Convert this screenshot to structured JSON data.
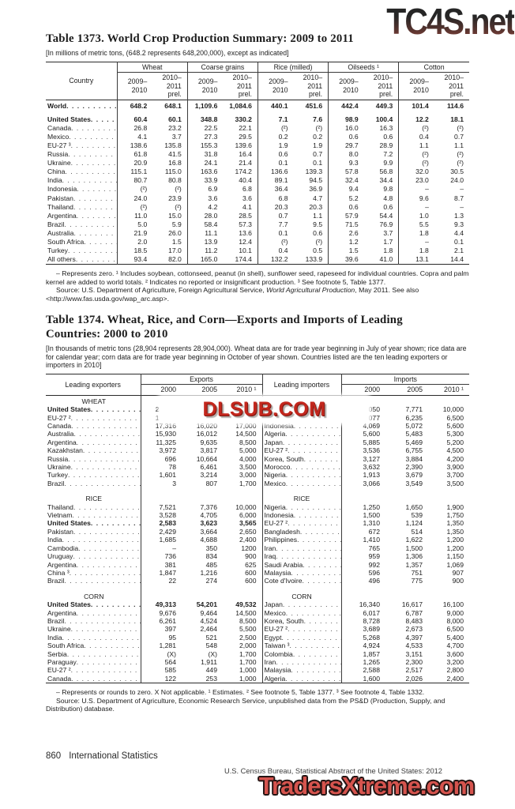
{
  "watermark_top": {
    "text": "TC4S.net",
    "color_top": "#262626",
    "color_bottom": "#8a443c"
  },
  "watermark_mid": {
    "text": "DLSUB.COM",
    "color": "#c3271d"
  },
  "watermark_bottom": {
    "text": "TradersXtreme.com",
    "color": "#d6544e"
  },
  "table1373": {
    "title": "Table 1373. World Crop Production Summary: 2009 to 2011",
    "note": "[In millions of metric tons, (648.2 represents 648,200,000), except as indicated]",
    "stub_header": "Country",
    "groups": [
      "Wheat",
      "Coarse grains",
      "Rice (milled)",
      "Oilseeds ¹",
      "Cotton"
    ],
    "year_cols": [
      "2009–\n2010",
      "2010–\n2011\nprel."
    ],
    "rows": [
      {
        "label": "World",
        "bold": true,
        "cls": "world",
        "values": [
          "648.2",
          "648.1",
          "1,109.6",
          "1,084.6",
          "440.1",
          "451.6",
          "442.4",
          "449.3",
          "101.4",
          "114.6"
        ]
      },
      {
        "label": "United States",
        "bold": true,
        "cls": "padtop",
        "values": [
          "60.4",
          "60.1",
          "348.8",
          "330.2",
          "7.1",
          "7.6",
          "98.9",
          "100.4",
          "12.2",
          "18.1"
        ]
      },
      {
        "label": "Canada",
        "values": [
          "26.8",
          "23.2",
          "22.5",
          "22.1",
          "(²)",
          "(²)",
          "16.0",
          "16.3",
          "(²)",
          "(²)"
        ]
      },
      {
        "label": "Mexico",
        "values": [
          "4.1",
          "3.7",
          "27.3",
          "29.5",
          "0.2",
          "0.2",
          "0.6",
          "0.6",
          "0.4",
          "0.7"
        ]
      },
      {
        "label": "EU-27 ³",
        "values": [
          "138.6",
          "135.8",
          "155.3",
          "139.6",
          "1.9",
          "1.9",
          "29.7",
          "28.9",
          "1.1",
          "1.1"
        ]
      },
      {
        "label": "Russia",
        "values": [
          "61.8",
          "41.5",
          "31.8",
          "16.4",
          "0.6",
          "0.7",
          "8.0",
          "7.2",
          "(²)",
          "(²)"
        ]
      },
      {
        "label": "Ukraine",
        "values": [
          "20.9",
          "16.8",
          "24.1",
          "21.4",
          "0.1",
          "0.1",
          "9.3",
          "9.9",
          "(²)",
          "(²)"
        ]
      },
      {
        "label": "China",
        "values": [
          "115.1",
          "115.0",
          "163.6",
          "174.2",
          "136.6",
          "139.3",
          "57.8",
          "56.8",
          "32.0",
          "30.5"
        ]
      },
      {
        "label": "India",
        "values": [
          "80.7",
          "80.8",
          "33.9",
          "40.4",
          "89.1",
          "94.5",
          "32.4",
          "34.4",
          "23.0",
          "24.0"
        ]
      },
      {
        "label": "Indonesia",
        "values": [
          "(²)",
          "(²)",
          "6.9",
          "6.8",
          "36.4",
          "36.9",
          "9.4",
          "9.8",
          "–",
          "–"
        ]
      },
      {
        "label": "Pakistan",
        "values": [
          "24.0",
          "23.9",
          "3.6",
          "3.6",
          "6.8",
          "4.7",
          "5.2",
          "4.8",
          "9.6",
          "8.7"
        ]
      },
      {
        "label": "Thailand",
        "values": [
          "(²)",
          "(²)",
          "4.2",
          "4.1",
          "20.3",
          "20.3",
          "0.6",
          "0.6",
          "–",
          "–"
        ]
      },
      {
        "label": "Argentina",
        "values": [
          "11.0",
          "15.0",
          "28.0",
          "28.5",
          "0.7",
          "1.1",
          "57.9",
          "54.4",
          "1.0",
          "1.3"
        ]
      },
      {
        "label": "Brazil",
        "values": [
          "5.0",
          "5.9",
          "58.4",
          "57.3",
          "7.7",
          "9.5",
          "71.5",
          "76.9",
          "5.5",
          "9.3"
        ]
      },
      {
        "label": "Australia",
        "values": [
          "21.9",
          "26.0",
          "11.1",
          "13.6",
          "0.1",
          "0.6",
          "2.6",
          "3.7",
          "1.8",
          "4.4"
        ]
      },
      {
        "label": "South Africa",
        "values": [
          "2.0",
          "1.5",
          "13.9",
          "12.4",
          "(²)",
          "(²)",
          "1.2",
          "1.7",
          "–",
          "0.1"
        ]
      },
      {
        "label": "Turkey",
        "values": [
          "18.5",
          "17.0",
          "11.2",
          "10.1",
          "0.4",
          "0.5",
          "1.5",
          "1.8",
          "1.8",
          "2.1"
        ]
      },
      {
        "label": "All others",
        "values": [
          "93.4",
          "82.0",
          "165.0",
          "174.4",
          "132.2",
          "133.9",
          "39.6",
          "41.0",
          "13.1",
          "14.4"
        ]
      }
    ],
    "footnote1": "– Represents zero. ¹ Includes soybean, cottonseed, peanut (in shell), sunflower seed, rapeseed for individual countries. Copra and palm kernel are added to world totals. ² Indicates no reported or insignificant production. ³ See footnote 5, Table 1377.",
    "source_pre": "Source: U.S. Department of Agriculture, Foreign Agricultural Service, ",
    "source_italic": "World Agricultural Production",
    "source_post": ", May 2011. See also <http://www.fas.usda.gov/wap_arc.asp>."
  },
  "table1374": {
    "title": "Table 1374. Wheat, Rice, and Corn—Exports and Imports of Leading Countries: 2000 to 2010",
    "note": "[In thousands of metric tons (28,904 represents 28,904,000). Wheat data are for trade year beginning in July of year shown; rice data are for calendar year; corn data are for trade year beginning in October of year shown. Countries listed are the ten leading exporters or importers in 2010]",
    "stub_exporters": "Leading exporters",
    "stub_importers": "Leading importers",
    "group_exports": "Exports",
    "group_imports": "Imports",
    "years": [
      "2000",
      "2005",
      "2010 ¹"
    ],
    "sections": [
      {
        "name": "WHEAT",
        "exporters": [
          {
            "label": "United States",
            "bold": true,
            "values": [
              "28,904",
              "27,299",
              "35,000"
            ]
          },
          {
            "label": "EU-27 ²",
            "values": [
              "15,740",
              "15,661",
              "22,500"
            ]
          },
          {
            "label": "Canada",
            "values": [
              "17,316",
              "16,020",
              "17,000"
            ]
          },
          {
            "label": "Australia",
            "values": [
              "15,930",
              "16,012",
              "14,500"
            ]
          },
          {
            "label": "Argentina",
            "values": [
              "11,325",
              "9,635",
              "8,500"
            ]
          },
          {
            "label": "Kazakhstan",
            "values": [
              "3,972",
              "3,817",
              "5,000"
            ]
          },
          {
            "label": "Russia",
            "values": [
              "696",
              "10,664",
              "4,000"
            ]
          },
          {
            "label": "Ukraine",
            "values": [
              "78",
              "6,461",
              "3,500"
            ]
          },
          {
            "label": "Turkey",
            "values": [
              "1,601",
              "3,214",
              "3,000"
            ]
          },
          {
            "label": "Brazil",
            "values": [
              "3",
              "807",
              "1,700"
            ]
          }
        ],
        "importers": [
          {
            "label": "Egypt",
            "values": [
              "6,050",
              "7,771",
              "10,000"
            ]
          },
          {
            "label": "Brazil",
            "values": [
              "7,077",
              "6,235",
              "6,500"
            ]
          },
          {
            "label": "Indonesia",
            "values": [
              "4,069",
              "5,072",
              "5,600"
            ]
          },
          {
            "label": "Algeria",
            "values": [
              "5,600",
              "5,483",
              "5,300"
            ]
          },
          {
            "label": "Japan",
            "values": [
              "5,885",
              "5,469",
              "5,200"
            ]
          },
          {
            "label": "EU-27 ²",
            "values": [
              "3,536",
              "6,755",
              "4,500"
            ]
          },
          {
            "label": "Korea, South",
            "values": [
              "3,127",
              "3,884",
              "4,200"
            ]
          },
          {
            "label": "Morocco",
            "values": [
              "3,632",
              "2,390",
              "3,900"
            ]
          },
          {
            "label": "Nigeria",
            "values": [
              "1,913",
              "3,679",
              "3,700"
            ]
          },
          {
            "label": "Mexico",
            "values": [
              "3,066",
              "3,549",
              "3,500"
            ]
          }
        ]
      },
      {
        "name": "RICE",
        "exporters": [
          {
            "label": "Thailand",
            "values": [
              "7,521",
              "7,376",
              "10,000"
            ]
          },
          {
            "label": "Vietnam",
            "values": [
              "3,528",
              "4,705",
              "6,000"
            ]
          },
          {
            "label": "United States",
            "bold": true,
            "values": [
              "2,583",
              "3,623",
              "3,565"
            ]
          },
          {
            "label": "Pakistan",
            "values": [
              "2,429",
              "3,664",
              "2,650"
            ]
          },
          {
            "label": "India",
            "values": [
              "1,685",
              "4,688",
              "2,400"
            ]
          },
          {
            "label": "Cambodia",
            "values": [
              "–",
              "350",
              "1200"
            ]
          },
          {
            "label": "Uruguay",
            "values": [
              "736",
              "834",
              "900"
            ]
          },
          {
            "label": "Argentina",
            "values": [
              "381",
              "485",
              "625"
            ]
          },
          {
            "label": "China ³",
            "values": [
              "1,847",
              "1,216",
              "600"
            ]
          },
          {
            "label": "Brazil",
            "values": [
              "22",
              "274",
              "600"
            ]
          }
        ],
        "importers": [
          {
            "label": "Nigeria",
            "values": [
              "1,250",
              "1,650",
              "1,900"
            ]
          },
          {
            "label": "Indonesia",
            "values": [
              "1,500",
              "539",
              "1,750"
            ]
          },
          {
            "label": "EU-27 ²",
            "values": [
              "1,310",
              "1,124",
              "1,350"
            ]
          },
          {
            "label": "Bangladesh",
            "values": [
              "672",
              "514",
              "1,350"
            ]
          },
          {
            "label": "Philippines",
            "values": [
              "1,410",
              "1,622",
              "1,200"
            ]
          },
          {
            "label": "Iran",
            "values": [
              "765",
              "1,500",
              "1,200"
            ]
          },
          {
            "label": "Iraq",
            "values": [
              "959",
              "1,306",
              "1,150"
            ]
          },
          {
            "label": "Saudi Arabia",
            "values": [
              "992",
              "1,357",
              "1,069"
            ]
          },
          {
            "label": "Malaysia",
            "values": [
              "596",
              "751",
              "907"
            ]
          },
          {
            "label": "Cote d'Ivoire",
            "values": [
              "496",
              "775",
              "900"
            ]
          }
        ]
      },
      {
        "name": "CORN",
        "exporters": [
          {
            "label": "United States",
            "bold": true,
            "values": [
              "49,313",
              "54,201",
              "49,532"
            ]
          },
          {
            "label": "Argentina",
            "values": [
              "9,676",
              "9,464",
              "14,500"
            ]
          },
          {
            "label": "Brazil",
            "values": [
              "6,261",
              "4,524",
              "8,500"
            ]
          },
          {
            "label": "Ukraine",
            "values": [
              "397",
              "2,464",
              "5,500"
            ]
          },
          {
            "label": "India",
            "values": [
              "95",
              "521",
              "2,500"
            ]
          },
          {
            "label": "South Africa",
            "values": [
              "1,281",
              "548",
              "2,000"
            ]
          },
          {
            "label": "Serbia",
            "values": [
              "(X)",
              "(X)",
              "1,700"
            ]
          },
          {
            "label": "Paraguay",
            "values": [
              "564",
              "1,911",
              "1,700"
            ]
          },
          {
            "label": "EU-27 ²",
            "values": [
              "585",
              "449",
              "1,000"
            ]
          },
          {
            "label": "Canada",
            "values": [
              "122",
              "253",
              "1,000"
            ]
          }
        ],
        "importers": [
          {
            "label": "Japan",
            "values": [
              "16,340",
              "16,617",
              "16,100"
            ]
          },
          {
            "label": "Mexico",
            "values": [
              "6,017",
              "6,787",
              "9,000"
            ]
          },
          {
            "label": "Korea, South",
            "values": [
              "8,728",
              "8,483",
              "8,000"
            ]
          },
          {
            "label": "EU-27 ²",
            "values": [
              "3,689",
              "2,673",
              "6,500"
            ]
          },
          {
            "label": "Egypt",
            "values": [
              "5,268",
              "4,397",
              "5,400"
            ]
          },
          {
            "label": "Taiwan ³",
            "values": [
              "4,924",
              "4,533",
              "4,700"
            ]
          },
          {
            "label": "Colombia",
            "values": [
              "1,857",
              "3,151",
              "3,600"
            ]
          },
          {
            "label": "Iran",
            "values": [
              "1,265",
              "2,300",
              "3,200"
            ]
          },
          {
            "label": "Malaysia",
            "values": [
              "2,588",
              "2,517",
              "2,800"
            ]
          },
          {
            "label": "Algeria",
            "values": [
              "1,600",
              "2,026",
              "2,400"
            ]
          }
        ]
      }
    ],
    "footnote1": "– Represents or rounds to zero. X Not applicable. ¹ Estimates. ² See footnote 5, Table 1377. ³ See footnote 4, Table 1332.",
    "source": "Source: U.S. Department of Agriculture, Economic Research Service, unpublished data from the PS&D (Production, Supply, and Distribution) database."
  },
  "footer": {
    "page_number": "860",
    "section": "International Statistics",
    "census_line": "U.S. Census Bureau, Statistical Abstract of the United States: 2012"
  }
}
